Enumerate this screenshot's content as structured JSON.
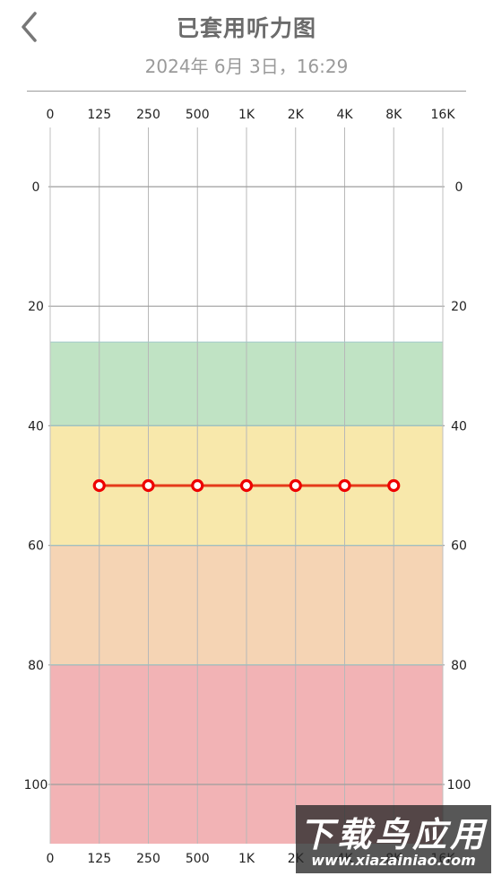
{
  "header": {
    "title": "已套用听力图",
    "subtitle": "2024年 6月 3日，16:29",
    "back_icon": "chevron-left-icon"
  },
  "colors": {
    "band_mild": "#c0e3c4",
    "band_moderate": "#f8e8ab",
    "band_severe": "#f5d4b4",
    "band_profound": "#f2b3b5",
    "grid": "#9e9e9e",
    "line": "#e53a1a",
    "point": "#ee0000"
  },
  "chart_data": {
    "type": "line",
    "x_ticks": [
      "0",
      "125",
      "250",
      "500",
      "1K",
      "2K",
      "4K",
      "8K",
      "16K"
    ],
    "y_ticks": [
      "0",
      "20",
      "40",
      "60",
      "80",
      "100"
    ],
    "y_range": [
      -10,
      110
    ],
    "bands": [
      {
        "from": 26,
        "to": 40
      },
      {
        "from": 40,
        "to": 60
      },
      {
        "from": 60,
        "to": 80
      },
      {
        "from": 80,
        "to": 110
      }
    ],
    "series": [
      {
        "x": [
          "125",
          "250",
          "500",
          "1K",
          "2K",
          "4K",
          "8K"
        ],
        "y": [
          50,
          50,
          50,
          50,
          50,
          50,
          50
        ]
      }
    ]
  },
  "watermark": {
    "top": "下载鸟应用",
    "bottom": "www.xiazainiao.com"
  }
}
